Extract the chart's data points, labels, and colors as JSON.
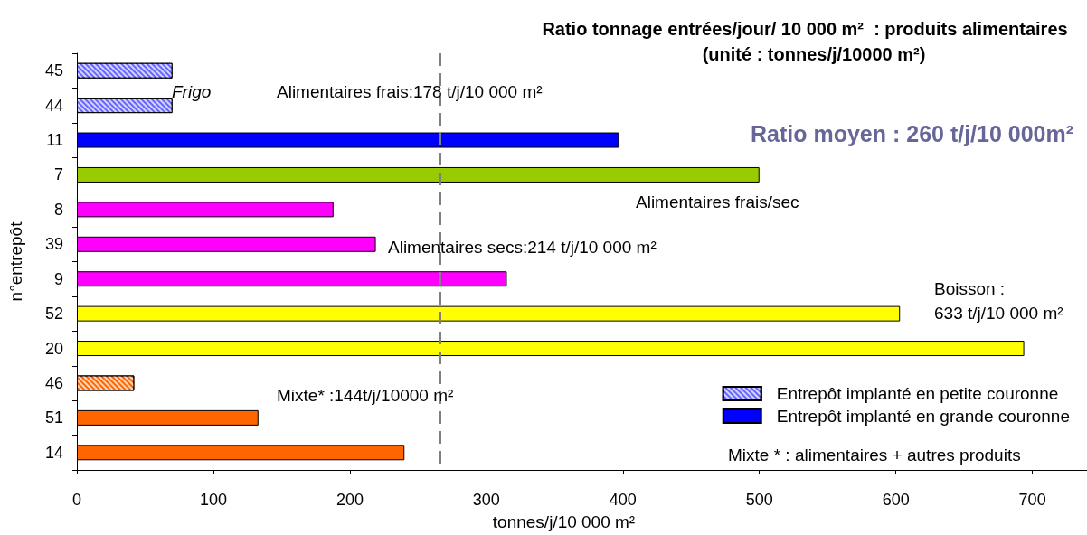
{
  "chart_data": {
    "type": "bar",
    "orientation": "horizontal",
    "title": "Ratio tonnage entrées/jour/ 10 000 m²  : produits alimentaires",
    "subtitle": "(unité : tonnes/j/10000 m²)",
    "xlabel": "tonnes/j/10 000 m²",
    "ylabel": "n°entrepôt",
    "categories": [
      "45",
      "44",
      "11",
      "7",
      "8",
      "39",
      "9",
      "52",
      "20",
      "46",
      "51",
      "14"
    ],
    "series": [
      {
        "name": "Entrepôt implanté en petite couronne",
        "color": "#6666ff",
        "values": [
          70,
          70,
          null,
          null,
          null,
          null,
          null,
          null,
          null,
          42,
          null,
          null
        ],
        "colors": [
          "#6666ff",
          "#6666ff",
          null,
          null,
          null,
          null,
          null,
          null,
          null,
          "#ff6600",
          null,
          null
        ]
      },
      {
        "name": "Entrepôt implanté en grande couronne",
        "color": "#0000ff",
        "values": [
          null,
          null,
          397,
          500,
          188,
          219,
          315,
          603,
          694,
          null,
          133,
          240
        ],
        "colors": [
          null,
          null,
          "#0000ff",
          "#99cc00",
          "#ff00ff",
          "#ff00ff",
          "#ff00ff",
          "#ffff00",
          "#ffff00",
          null,
          "#ff6600",
          "#ff6600"
        ]
      }
    ],
    "xlim": [
      0,
      740
    ],
    "xticks": [
      0,
      100,
      200,
      300,
      400,
      500,
      600,
      700
    ],
    "ref_lines": [
      {
        "axis": "x",
        "value": 266,
        "color": "#808080",
        "line_style": "dashed"
      }
    ],
    "annotations": [
      "Frigo",
      "Alimentaires frais:178 t/j/10 000 m²",
      "Ratio moyen : 260 t/j/10 000m²",
      "Alimentaires frais/sec",
      "Alimentaires secs:214 t/j/10 000 m²",
      "Boisson :\n633 t/j/10 000 m²",
      "Mixte* :144t/j/10000 m²",
      "Mixte * : alimentaires + autres produits"
    ],
    "legend": "bottom right",
    "grid": false
  }
}
